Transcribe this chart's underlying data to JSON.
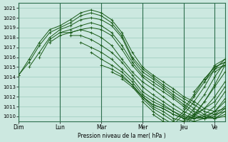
{
  "xlabel": "Pression niveau de la mer( hPa )",
  "ylim": [
    1009.5,
    1021.5
  ],
  "yticks": [
    1010,
    1011,
    1012,
    1013,
    1014,
    1015,
    1016,
    1017,
    1018,
    1019,
    1020,
    1021
  ],
  "day_labels": [
    "Dim",
    "Lun",
    "Mar",
    "Mer",
    "Jeu",
    "Ve"
  ],
  "day_positions": [
    0,
    24,
    48,
    72,
    96,
    114
  ],
  "xlim": [
    0,
    120
  ],
  "bg_color": "#cce8e0",
  "grid_color": "#99ccbb",
  "line_color": "#1a5c1a",
  "total_hours": 120,
  "lines": [
    {
      "x": [
        0,
        6,
        12,
        18,
        24,
        30,
        36,
        42,
        48,
        54,
        60,
        66,
        72,
        78,
        84,
        90,
        96,
        102,
        108,
        114,
        120
      ],
      "y": [
        1014.2,
        1015.8,
        1017.5,
        1018.8,
        1019.2,
        1019.8,
        1020.5,
        1020.8,
        1020.5,
        1019.8,
        1018.5,
        1016.5,
        1015.0,
        1014.2,
        1013.5,
        1012.8,
        1012.0,
        1011.5,
        1010.8,
        1010.5,
        1010.8
      ]
    },
    {
      "x": [
        0,
        6,
        12,
        18,
        24,
        30,
        36,
        42,
        48,
        54,
        60,
        66,
        72,
        78,
        84,
        90,
        96,
        102,
        108,
        114,
        120
      ],
      "y": [
        1014.2,
        1015.5,
        1017.2,
        1018.5,
        1019.0,
        1019.5,
        1020.2,
        1020.5,
        1020.2,
        1019.5,
        1018.2,
        1016.0,
        1014.8,
        1014.0,
        1013.2,
        1012.5,
        1011.8,
        1011.2,
        1010.5,
        1010.2,
        1010.5
      ]
    },
    {
      "x": [
        6,
        12,
        18,
        24,
        30,
        36,
        42,
        48,
        54,
        60,
        66,
        72,
        78,
        84,
        90,
        96,
        102,
        108,
        114,
        120
      ],
      "y": [
        1015.0,
        1016.5,
        1018.0,
        1018.8,
        1019.2,
        1019.8,
        1020.0,
        1019.8,
        1019.2,
        1018.0,
        1015.8,
        1014.5,
        1013.8,
        1013.0,
        1012.2,
        1011.5,
        1010.8,
        1010.2,
        1009.8,
        1010.0
      ]
    },
    {
      "x": [
        12,
        18,
        24,
        30,
        36,
        42,
        48,
        54,
        60,
        66,
        72,
        78,
        84,
        90,
        96,
        102,
        108,
        114,
        120
      ],
      "y": [
        1016.0,
        1017.8,
        1018.5,
        1018.8,
        1019.2,
        1019.5,
        1019.2,
        1018.5,
        1017.2,
        1015.5,
        1014.2,
        1013.5,
        1012.8,
        1012.0,
        1011.2,
        1010.5,
        1010.0,
        1009.8,
        1010.2
      ]
    },
    {
      "x": [
        18,
        24,
        30,
        36,
        42,
        48,
        54,
        60,
        66,
        72,
        78,
        84,
        90,
        96,
        102,
        108,
        114,
        120
      ],
      "y": [
        1017.5,
        1018.2,
        1018.5,
        1018.8,
        1019.0,
        1018.8,
        1018.2,
        1016.8,
        1015.2,
        1014.0,
        1013.2,
        1012.5,
        1011.8,
        1011.0,
        1010.2,
        1009.8,
        1009.8,
        1010.5
      ]
    },
    {
      "x": [
        24,
        30,
        36,
        42,
        48,
        54,
        60,
        66,
        72,
        78,
        84,
        90,
        96,
        102,
        108,
        114,
        120
      ],
      "y": [
        1018.5,
        1018.5,
        1018.8,
        1018.5,
        1018.0,
        1017.2,
        1015.8,
        1014.5,
        1013.5,
        1012.8,
        1012.0,
        1011.2,
        1010.5,
        1010.0,
        1009.8,
        1010.0,
        1010.8
      ]
    },
    {
      "x": [
        30,
        36,
        42,
        48,
        54,
        60,
        66,
        72,
        78,
        84,
        90,
        96,
        102,
        108,
        114,
        120
      ],
      "y": [
        1018.2,
        1018.2,
        1017.8,
        1017.2,
        1016.5,
        1015.5,
        1014.2,
        1013.0,
        1012.2,
        1011.5,
        1010.8,
        1010.2,
        1009.8,
        1009.8,
        1010.2,
        1011.0
      ]
    },
    {
      "x": [
        36,
        42,
        48,
        54,
        60,
        66,
        72,
        78,
        84,
        90,
        96,
        102,
        108,
        114,
        120
      ],
      "y": [
        1017.5,
        1017.0,
        1016.5,
        1015.8,
        1014.8,
        1013.8,
        1012.5,
        1011.8,
        1011.2,
        1010.5,
        1010.0,
        1009.8,
        1010.0,
        1010.5,
        1011.5
      ]
    },
    {
      "x": [
        42,
        48,
        54,
        60,
        66,
        72,
        78,
        84,
        90,
        96,
        102,
        108,
        114,
        120
      ],
      "y": [
        1016.5,
        1015.8,
        1015.2,
        1014.5,
        1013.5,
        1012.2,
        1011.5,
        1011.0,
        1010.5,
        1009.8,
        1009.5,
        1009.8,
        1010.5,
        1011.8
      ]
    },
    {
      "x": [
        48,
        54,
        60,
        66,
        72,
        78,
        84,
        90,
        96,
        102,
        108,
        114,
        120
      ],
      "y": [
        1015.2,
        1014.8,
        1014.2,
        1013.2,
        1012.0,
        1011.2,
        1010.8,
        1010.2,
        1009.8,
        1009.8,
        1010.2,
        1011.0,
        1012.5
      ]
    },
    {
      "x": [
        54,
        60,
        66,
        72,
        78,
        84,
        90,
        96,
        102,
        108,
        114,
        120
      ],
      "y": [
        1014.5,
        1014.0,
        1013.2,
        1012.0,
        1011.2,
        1010.8,
        1010.2,
        1009.8,
        1010.2,
        1010.8,
        1011.5,
        1013.0
      ]
    },
    {
      "x": [
        60,
        66,
        72,
        78,
        84,
        90,
        96,
        102,
        108,
        114,
        120
      ],
      "y": [
        1013.8,
        1013.0,
        1012.0,
        1011.0,
        1010.5,
        1009.8,
        1009.5,
        1010.0,
        1010.8,
        1012.0,
        1013.5
      ]
    },
    {
      "x": [
        66,
        72,
        78,
        84,
        90,
        96,
        102,
        108,
        114,
        120
      ],
      "y": [
        1013.0,
        1011.8,
        1010.8,
        1010.2,
        1009.5,
        1009.2,
        1010.2,
        1011.5,
        1013.0,
        1014.5
      ]
    },
    {
      "x": [
        72,
        78,
        84,
        90,
        96,
        102,
        108,
        114,
        120
      ],
      "y": [
        1011.5,
        1010.5,
        1009.8,
        1009.2,
        1009.0,
        1010.0,
        1011.5,
        1013.2,
        1015.2
      ]
    },
    {
      "x": [
        78,
        84,
        90,
        96,
        102,
        108,
        114,
        120
      ],
      "y": [
        1010.2,
        1009.5,
        1009.0,
        1009.5,
        1010.8,
        1012.2,
        1014.0,
        1015.5
      ]
    },
    {
      "x": [
        84,
        90,
        96,
        102,
        108,
        114,
        120
      ],
      "y": [
        1009.5,
        1009.2,
        1010.2,
        1011.5,
        1013.0,
        1014.8,
        1015.8
      ]
    },
    {
      "x": [
        90,
        96,
        102,
        108,
        114,
        120
      ],
      "y": [
        1009.5,
        1010.5,
        1012.0,
        1013.5,
        1015.2,
        1015.8
      ]
    },
    {
      "x": [
        96,
        102,
        108,
        114,
        120
      ],
      "y": [
        1010.8,
        1012.2,
        1013.8,
        1015.0,
        1015.5
      ]
    },
    {
      "x": [
        102,
        108,
        114,
        120
      ],
      "y": [
        1012.5,
        1013.8,
        1015.0,
        1015.5
      ]
    },
    {
      "x": [
        108,
        114,
        120
      ],
      "y": [
        1013.5,
        1014.8,
        1015.2
      ]
    },
    {
      "x": [
        114,
        120
      ],
      "y": [
        1014.5,
        1015.2
      ]
    }
  ]
}
